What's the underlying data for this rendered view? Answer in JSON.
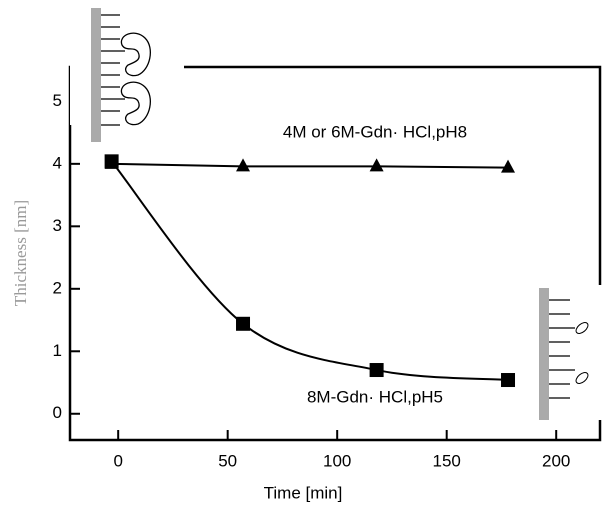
{
  "chart_data": {
    "type": "line",
    "x_label": "Time [min]",
    "y_label": "Thickness [nm]",
    "annotations": [
      "4M or 6M-Gdn· HCl,pH8",
      "8M-Gdn· HCl,pH5"
    ],
    "xlim": [
      -22,
      220
    ],
    "ylim": [
      -0.42,
      5.55
    ],
    "xticks": [
      0,
      50,
      100,
      150,
      200
    ],
    "yticks": [
      0,
      1,
      2,
      3,
      4,
      5
    ],
    "series": [
      {
        "name": "4M or 6M-Gdn· HCl,pH8",
        "color": "#000000",
        "marker": "triangle",
        "smooth": false,
        "x": [
          -3,
          57,
          118,
          178
        ],
        "values": [
          4.0,
          3.96,
          3.96,
          3.94
        ]
      },
      {
        "name": "8M-Gdn· HCl,pH5",
        "color": "#000000",
        "marker": "square",
        "smooth": true,
        "x": [
          -3,
          57,
          118,
          178
        ],
        "values": [
          4.04,
          1.44,
          0.7,
          0.54
        ]
      }
    ]
  }
}
